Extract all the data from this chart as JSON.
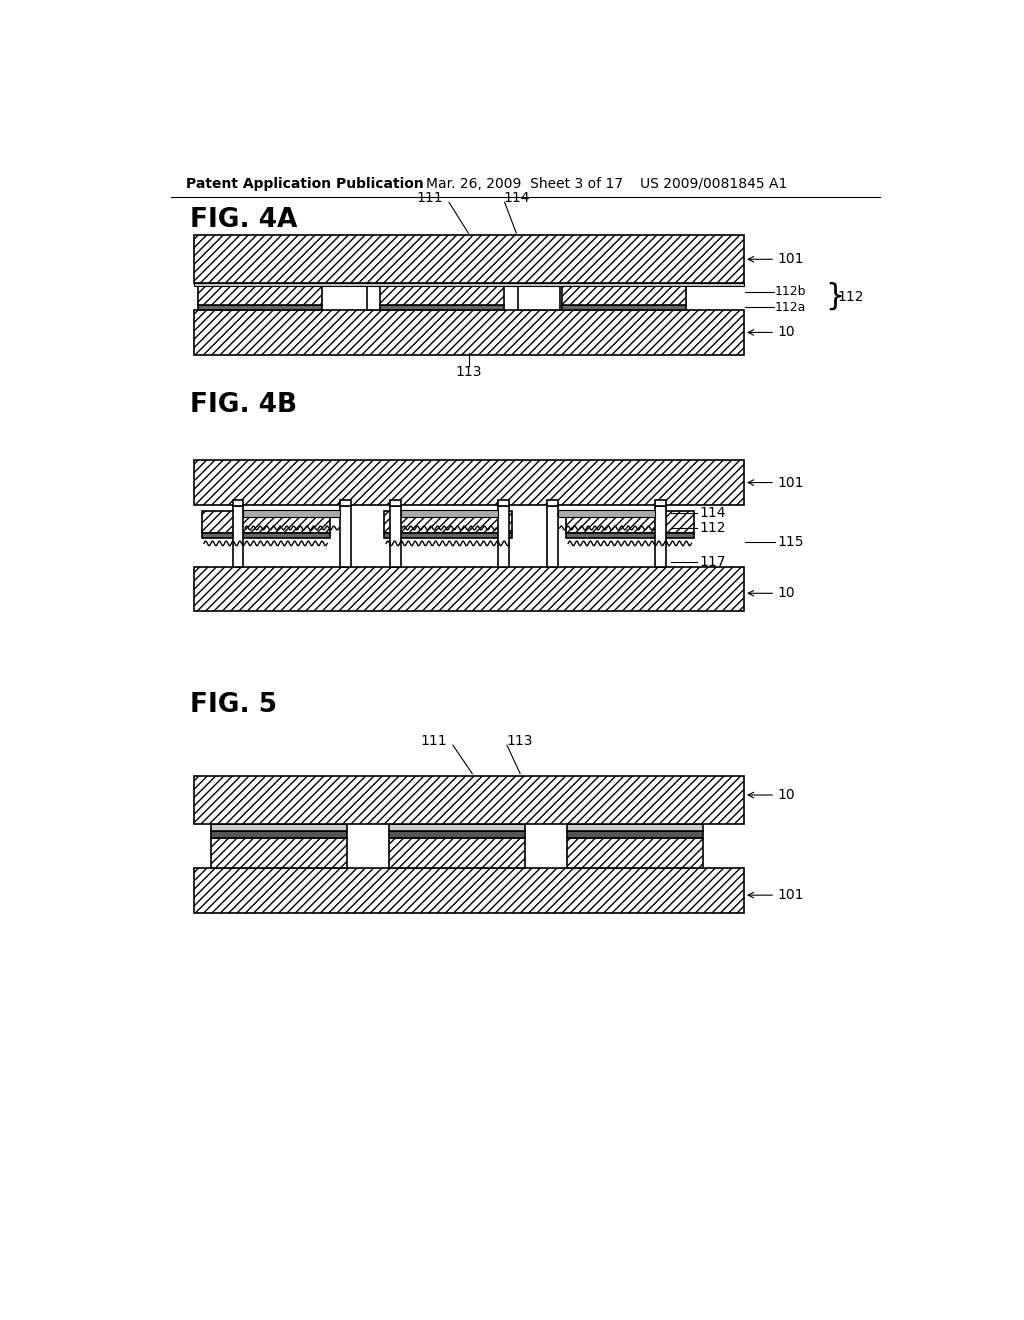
{
  "bg_color": "#ffffff",
  "header_text1": "Patent Application Publication",
  "header_text2": "Mar. 26, 2009  Sheet 3 of 17",
  "header_text3": "US 2009/0081845 A1",
  "fig4a_label": "FIG. 4A",
  "fig4b_label": "FIG. 4B",
  "fig5_label": "FIG. 5",
  "hatch_pattern": "////",
  "line_color": "#000000",
  "hatch_color": "#000000",
  "fill_color": "#ffffff"
}
